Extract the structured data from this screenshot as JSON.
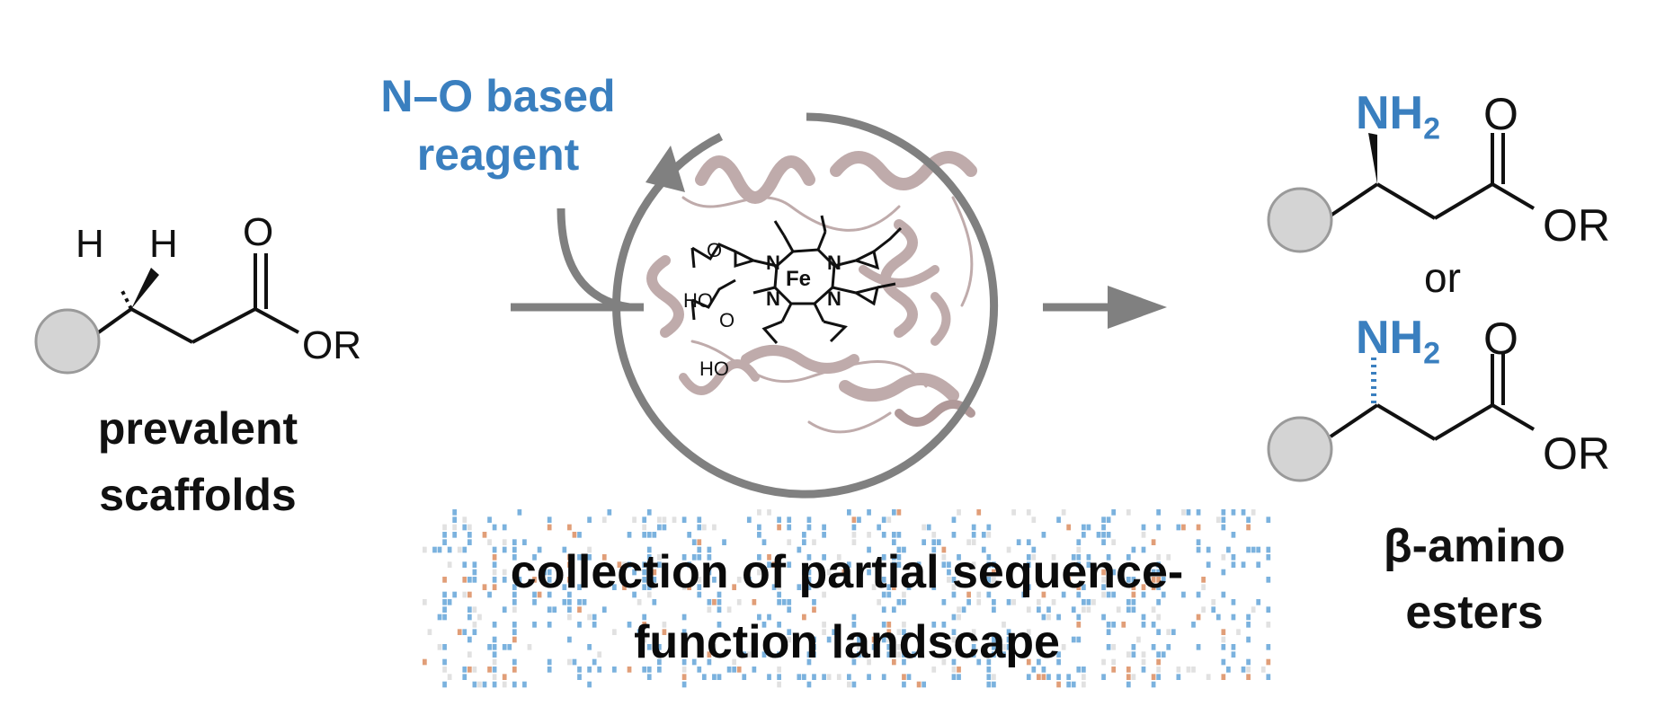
{
  "reagent_label": {
    "line1": "N–O based",
    "line2": "reagent"
  },
  "substrate": {
    "h_left": "H",
    "h_right": "H",
    "o": "O",
    "or": "OR",
    "caption_line1": "prevalent",
    "caption_line2": "scaffolds"
  },
  "heme": {
    "fe": "Fe",
    "n": "N",
    "ho": "HO",
    "o": "O"
  },
  "products": {
    "nh2": "NH",
    "nh2_sub": "2",
    "o": "O",
    "or": "OR",
    "or_word": "or",
    "caption_line1": "β-amino",
    "caption_line2": "esters"
  },
  "landscape": {
    "line1": "collection of partial sequence-",
    "line2": "function landscape"
  },
  "colors": {
    "accent_blue": "#3a7fbf",
    "arrow_gray": "#808080",
    "protein": "#b9a3a3",
    "heat_blue": "#5a9fd6",
    "heat_orange": "#d98656",
    "heat_gray": "#d9d9d9",
    "circle_fill": "#d4d4d4"
  }
}
